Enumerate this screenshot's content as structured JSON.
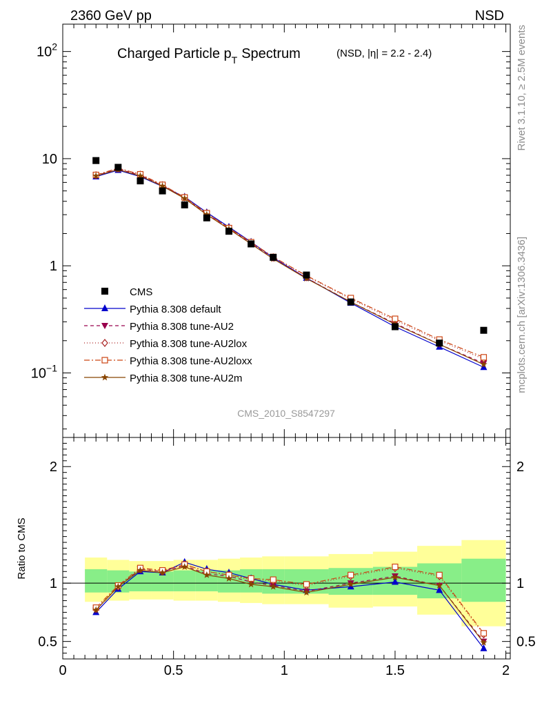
{
  "header": {
    "left": "2360 GeV pp",
    "right": "NSD"
  },
  "side": {
    "top": "Rivet 3.1.10, ≥ 2.5M events",
    "bottom": "mcplots.cern.ch [arXiv:1306.3436]"
  },
  "chart_data": {
    "type": "line",
    "title": "Charged Particle p",
    "title_sub": "T",
    "title_word": "Spectrum",
    "title_extra_pre": "(NSD, |",
    "title_eta": "η",
    "title_extra_post": "| = 2.2 - 2.4)",
    "watermark": "CMS_2010_S8547297",
    "ratio_ylabel": "Ratio to CMS",
    "x_ticklabels": [
      "0",
      "0.5",
      "1",
      "1.5",
      "2"
    ],
    "x_ticks": [
      0,
      0.5,
      1,
      1.5,
      2
    ],
    "xlim": [
      0,
      2.02
    ],
    "main_ylim": [
      0.025,
      180
    ],
    "main_yscale": "log",
    "main_ytick_labels": [
      {
        "v": 100,
        "base": "10",
        "exp": "2"
      },
      {
        "v": 10,
        "base": "10",
        "exp": ""
      },
      {
        "v": 1,
        "base": "1",
        "exp": ""
      },
      {
        "v": 0.1,
        "base": "10",
        "exp": "−1"
      }
    ],
    "ratio_ylim": [
      0.35,
      2.25
    ],
    "ratio_yticks": [
      0.5,
      1,
      2
    ],
    "ratio_ytick_labels": [
      "0.5",
      "1",
      "2"
    ],
    "legend_position": "bottom-left",
    "data": {
      "name": "CMS",
      "color": "#000000",
      "x": [
        0.15,
        0.25,
        0.35,
        0.45,
        0.55,
        0.65,
        0.75,
        0.85,
        0.95,
        1.1,
        1.3,
        1.5,
        1.7,
        1.9
      ],
      "y": [
        9.6,
        8.3,
        6.2,
        5.0,
        3.7,
        2.8,
        2.1,
        1.6,
        1.2,
        0.82,
        0.46,
        0.27,
        0.19,
        0.25
      ]
    },
    "bands": {
      "edges": [
        0.1,
        0.2,
        0.3,
        0.4,
        0.5,
        0.6,
        0.7,
        0.8,
        0.9,
        1.0,
        1.2,
        1.4,
        1.6,
        1.8,
        2.0
      ],
      "outer": [
        [
          0.84,
          1.22
        ],
        [
          0.85,
          1.2
        ],
        [
          0.86,
          1.19
        ],
        [
          0.86,
          1.19
        ],
        [
          0.85,
          1.2
        ],
        [
          0.85,
          1.2
        ],
        [
          0.84,
          1.21
        ],
        [
          0.83,
          1.22
        ],
        [
          0.82,
          1.23
        ],
        [
          0.82,
          1.23
        ],
        [
          0.79,
          1.25
        ],
        [
          0.8,
          1.27
        ],
        [
          0.73,
          1.32
        ],
        [
          0.63,
          1.37
        ]
      ],
      "inner": [
        [
          0.92,
          1.12
        ],
        [
          0.92,
          1.11
        ],
        [
          0.93,
          1.1
        ],
        [
          0.93,
          1.1
        ],
        [
          0.93,
          1.11
        ],
        [
          0.93,
          1.11
        ],
        [
          0.92,
          1.11
        ],
        [
          0.92,
          1.12
        ],
        [
          0.91,
          1.12
        ],
        [
          0.91,
          1.12
        ],
        [
          0.9,
          1.13
        ],
        [
          0.9,
          1.14
        ],
        [
          0.87,
          1.17
        ],
        [
          0.84,
          1.21
        ]
      ]
    },
    "series": [
      {
        "name": "Pythia 8.308 default",
        "color": "#0000cc",
        "dash": "",
        "marker": "triangle-up",
        "y": [
          6.8,
          7.8,
          6.8,
          5.5,
          4.4,
          3.15,
          2.3,
          1.67,
          1.19,
          0.77,
          0.45,
          0.27,
          0.175,
          0.113
        ],
        "ratio": [
          0.75,
          0.95,
          1.1,
          1.09,
          1.18,
          1.12,
          1.09,
          1.04,
          0.99,
          0.94,
          0.97,
          1.01,
          0.94,
          0.44
        ]
      },
      {
        "name": "Pythia 8.308 tune-AU2",
        "color": "#99004d",
        "dash": "5,4",
        "marker": "triangle-down",
        "y": [
          6.95,
          8.0,
          7.0,
          5.6,
          4.3,
          3.05,
          2.25,
          1.62,
          1.17,
          0.77,
          0.46,
          0.29,
          0.185,
          0.123
        ],
        "ratio": [
          0.77,
          0.97,
          1.12,
          1.1,
          1.15,
          1.08,
          1.06,
          1.01,
          0.98,
          0.93,
          1.0,
          1.06,
          0.98,
          0.5
        ]
      },
      {
        "name": "Pythia 8.308 tune-AU2lox",
        "color": "#aa2222",
        "dash": "1,3",
        "marker": "diamond",
        "y": [
          7.0,
          8.1,
          7.1,
          5.65,
          4.35,
          3.1,
          2.25,
          1.65,
          1.2,
          0.8,
          0.49,
          0.31,
          0.2,
          0.135
        ],
        "ratio": [
          0.78,
          0.97,
          1.12,
          1.1,
          1.16,
          1.1,
          1.07,
          1.03,
          1.02,
          0.98,
          1.06,
          1.13,
          1.06,
          0.56
        ]
      },
      {
        "name": "Pythia 8.308 tune-AU2loxx",
        "color": "#cc4411",
        "dash": "8,3,2,3",
        "marker": "square",
        "y": [
          7.05,
          8.15,
          7.15,
          5.7,
          4.35,
          3.1,
          2.25,
          1.66,
          1.21,
          0.81,
          0.5,
          0.32,
          0.205,
          0.14
        ],
        "ratio": [
          0.79,
          0.98,
          1.13,
          1.11,
          1.16,
          1.1,
          1.07,
          1.04,
          1.03,
          0.99,
          1.07,
          1.14,
          1.07,
          0.57
        ]
      },
      {
        "name": "Pythia 8.308 tune-AU2m",
        "color": "#884400",
        "dash": "",
        "marker": "star",
        "y": [
          6.9,
          7.9,
          6.9,
          5.55,
          4.25,
          3.0,
          2.2,
          1.6,
          1.16,
          0.76,
          0.46,
          0.285,
          0.185,
          0.12
        ],
        "ratio": [
          0.77,
          0.97,
          1.11,
          1.09,
          1.14,
          1.07,
          1.04,
          0.99,
          0.97,
          0.92,
          0.99,
          1.05,
          0.98,
          0.49
        ]
      }
    ]
  }
}
